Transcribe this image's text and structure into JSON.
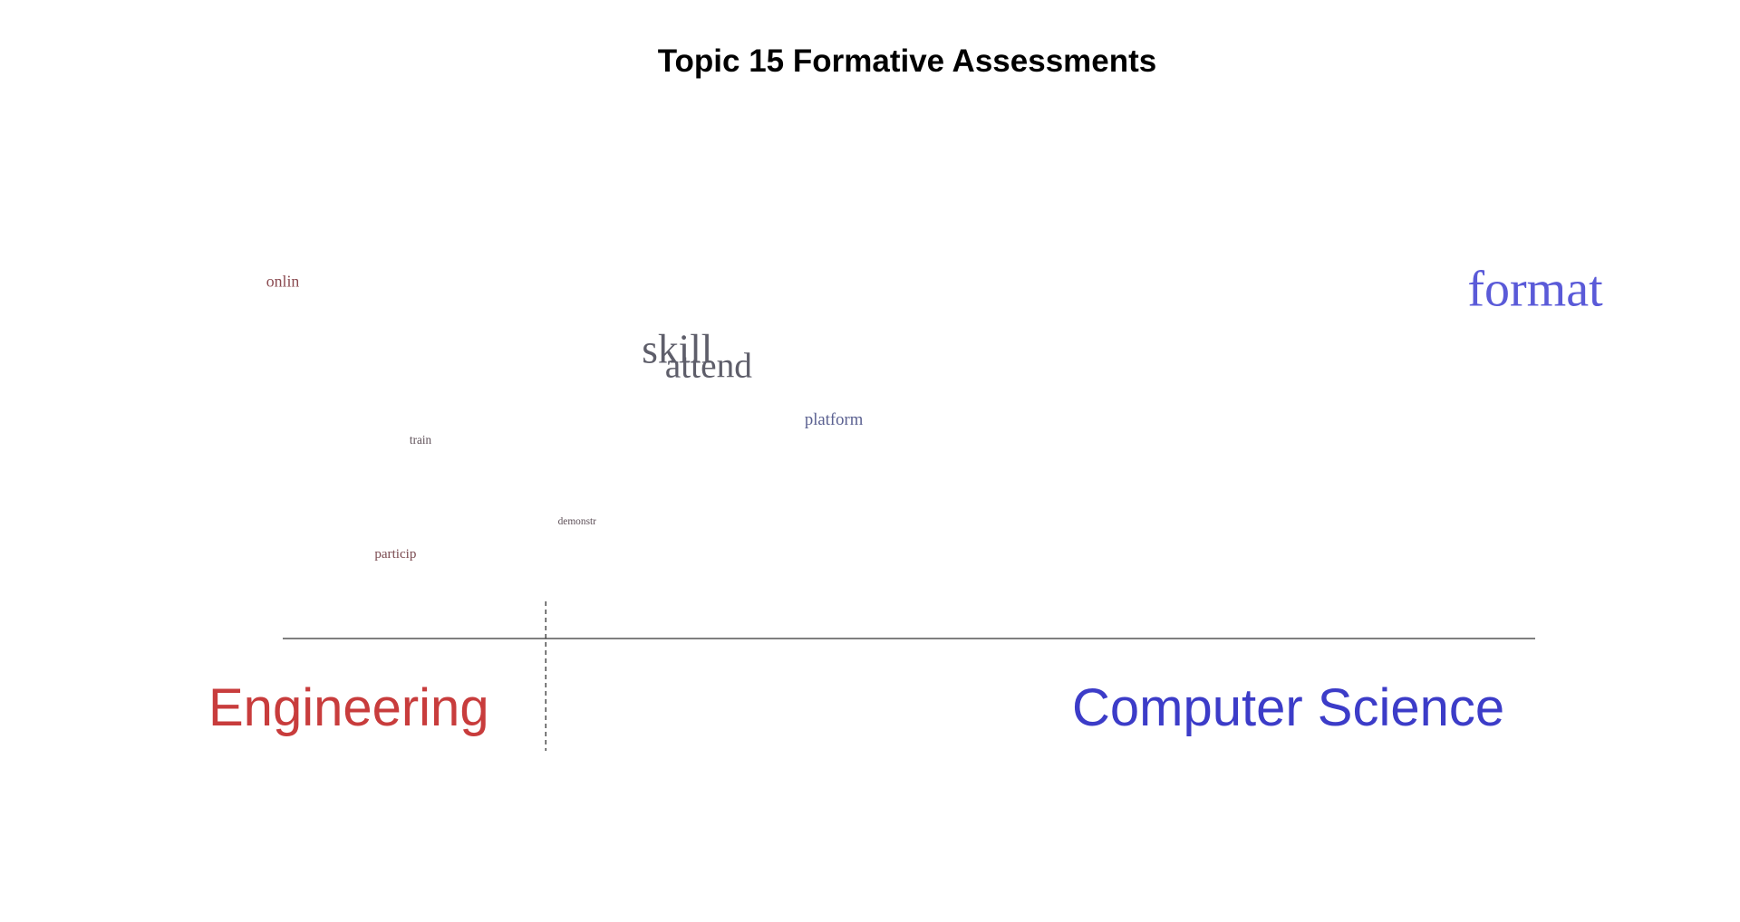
{
  "title": "Topic 15 Formative Assessments",
  "chart_data": {
    "type": "scatter",
    "title": "Topic 15 Formative Assessments",
    "xlabel": "",
    "ylabel": "",
    "x_range": [
      -1,
      1
    ],
    "y_range": [
      0,
      1
    ],
    "axis_labels": {
      "left": "Engineering",
      "right": "Computer Science"
    },
    "axis_colors": {
      "left": "#c83c3c",
      "right": "#3c3cc8"
    },
    "words": [
      {
        "text": "onlin",
        "x": -1.0,
        "y": 0.74,
        "size": 0.17,
        "color": "#8a4a50"
      },
      {
        "text": "format",
        "x": 1.0,
        "y": 0.7,
        "size": 1.0,
        "color": "#5a5ad8"
      },
      {
        "text": "skill",
        "x": -0.37,
        "y": 0.58,
        "size": 0.77,
        "color": "#5e5e6a"
      },
      {
        "text": "attend",
        "x": -0.32,
        "y": 0.55,
        "size": 0.64,
        "color": "#5e5e6a"
      },
      {
        "text": "platform",
        "x": -0.12,
        "y": 0.45,
        "size": 0.19,
        "color": "#5a6090"
      },
      {
        "text": "train",
        "x": -0.78,
        "y": 0.41,
        "size": 0.07,
        "color": "#5e5058"
      },
      {
        "text": "demonstr",
        "x": -0.53,
        "y": 0.24,
        "size": 0.03,
        "color": "#5e5058"
      },
      {
        "text": "particip",
        "x": -0.82,
        "y": 0.17,
        "size": 0.11,
        "color": "#7a4a50"
      }
    ],
    "divider_x": -0.58,
    "grid": false,
    "legend": "none"
  }
}
